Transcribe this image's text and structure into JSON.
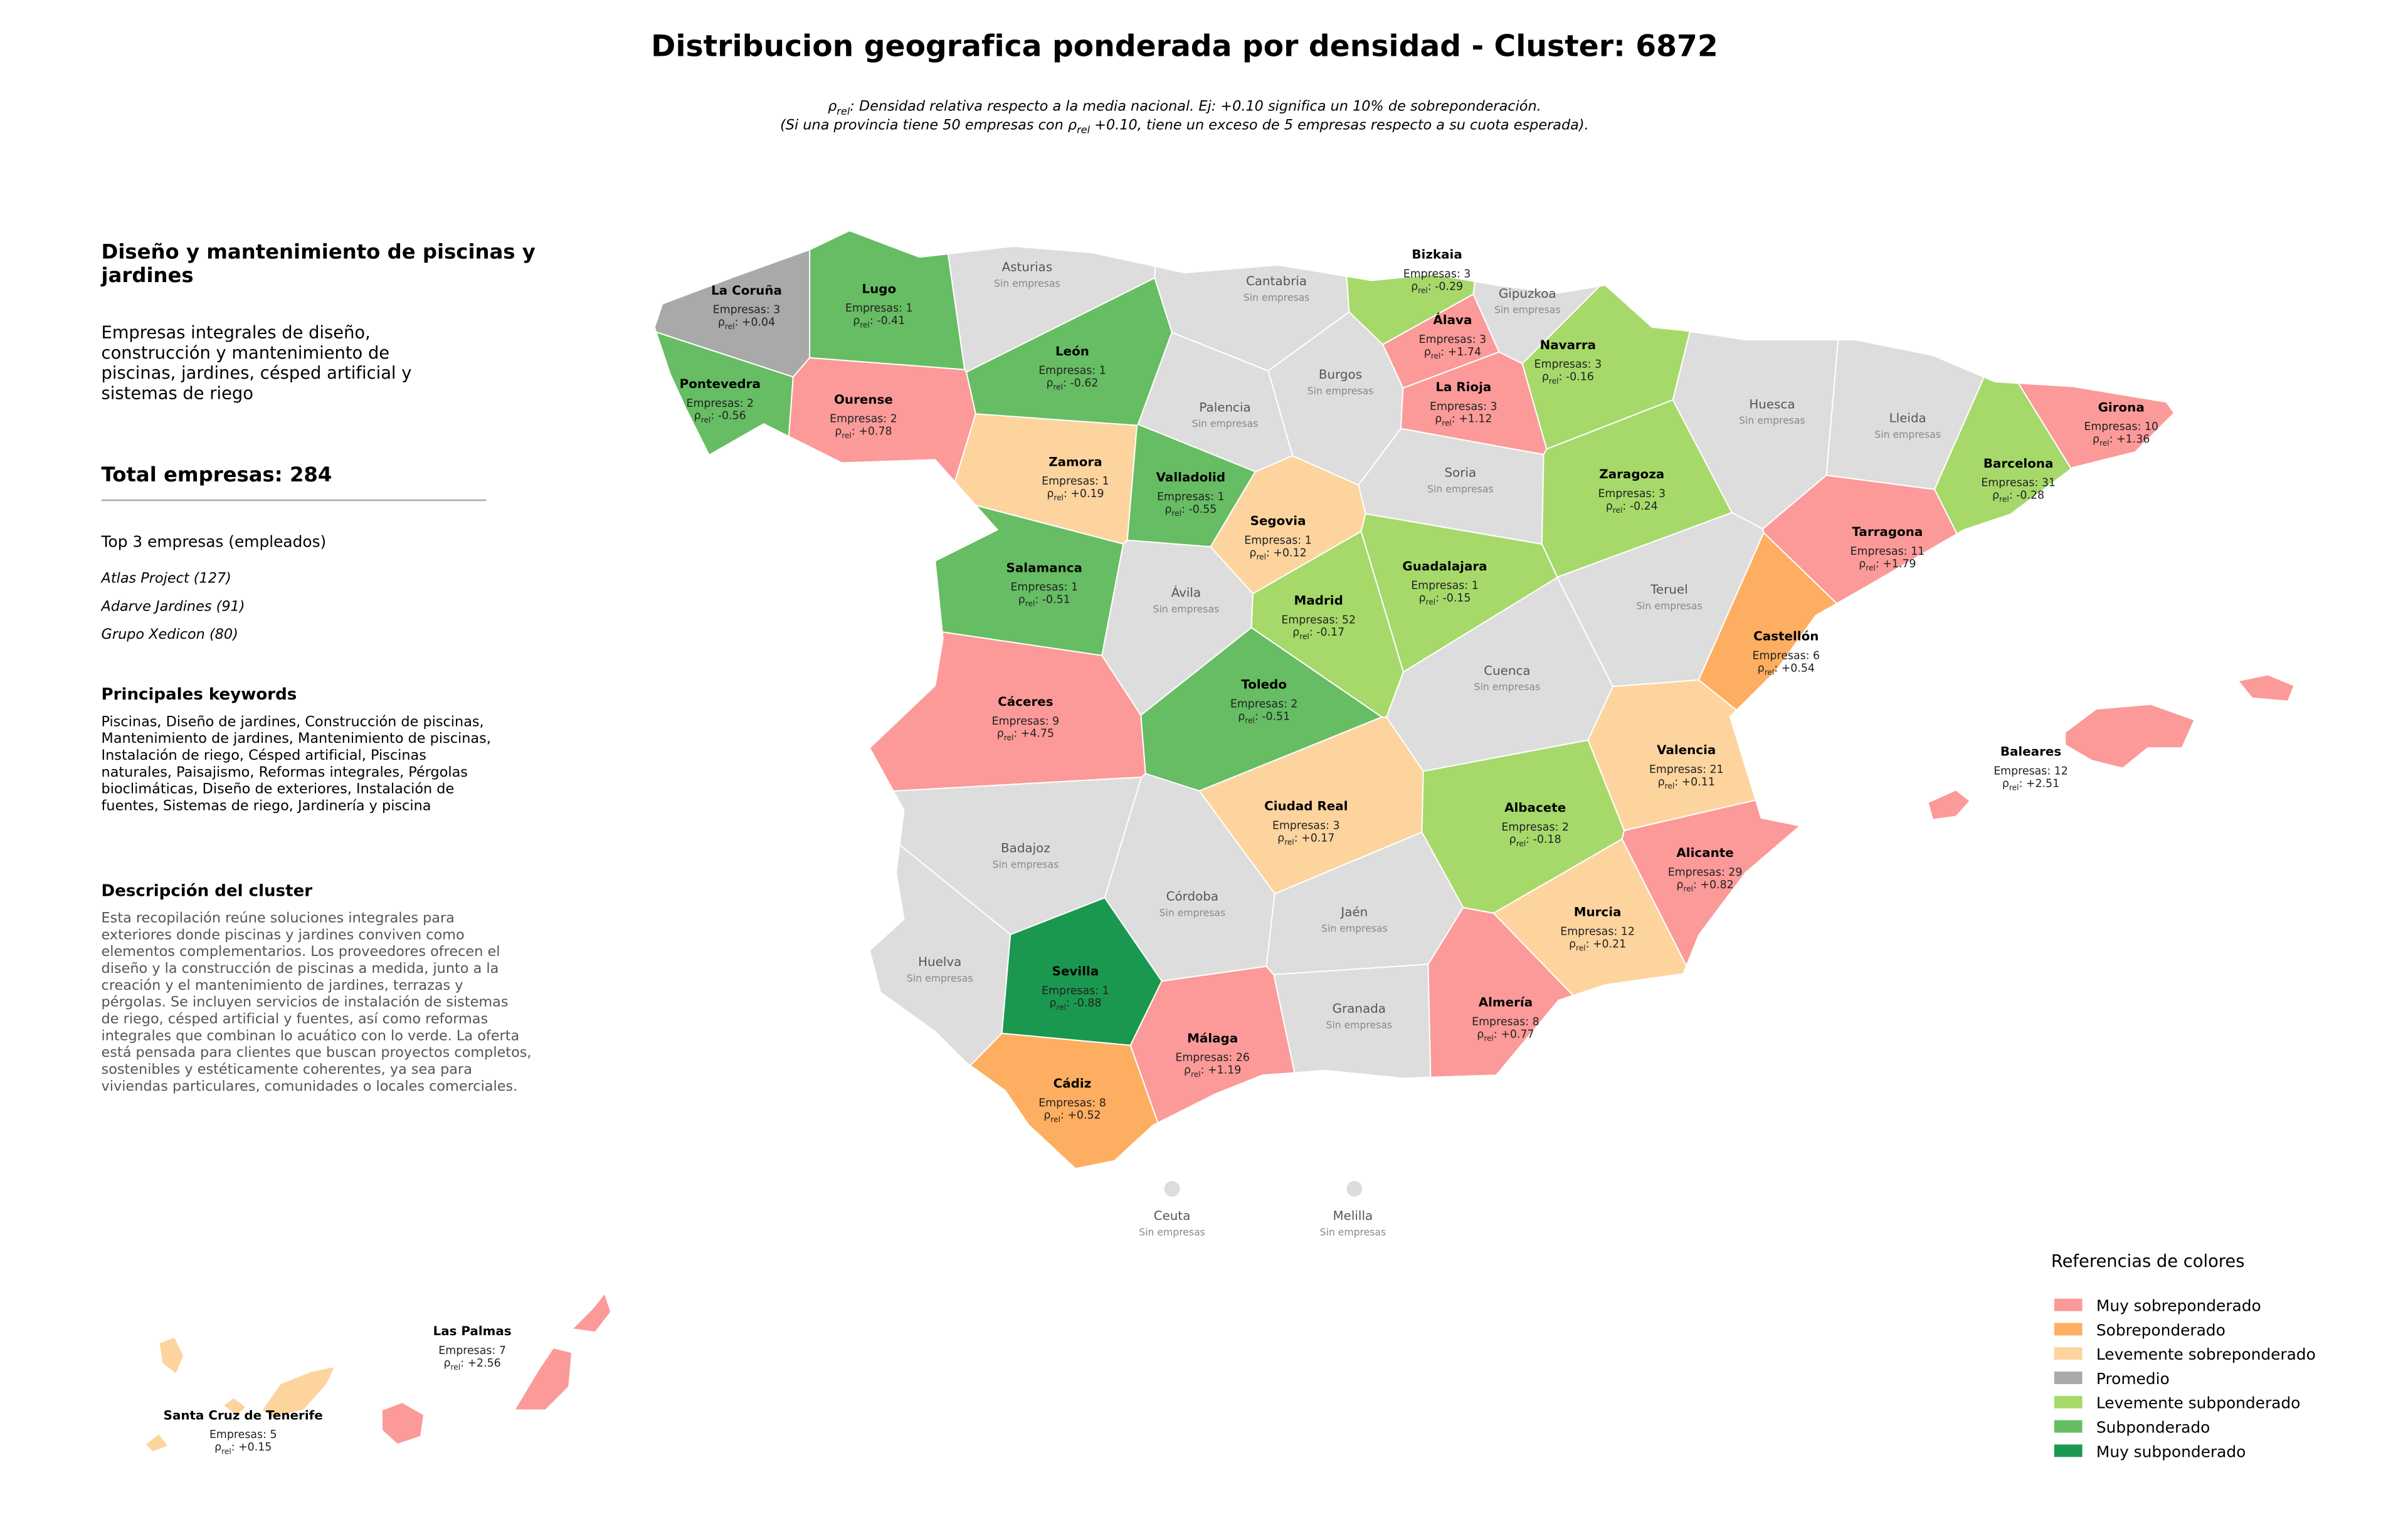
{
  "header": {
    "title": "Distribucion geografica ponderada por densidad - Cluster: 6872",
    "subtitle": [
      {
        "pre": "",
        "post": ": Densidad relativa respecto a la media nacional. Ej: +0.10 significa un 10% de sobreponderación."
      },
      {
        "pre": "(Si una provincia tiene 50 empresas con ",
        "post": " +0.10, tiene un exceso de 5 empresas respecto a su cuota esperada)."
      }
    ]
  },
  "rho_symbol": {
    "sym": "ρ",
    "sub": "rel",
    "sep": ": "
  },
  "count_prefix": "Empresas: ",
  "panel": {
    "heading": [
      "Diseño y mantenimiento de piscinas y",
      "jardines"
    ],
    "summary": [
      "Empresas integrales de diseño,",
      "construcción y mantenimiento de",
      "piscinas, jardines, césped artificial y",
      "sistemas de riego"
    ],
    "total_label": "Total empresas: ",
    "total": 284,
    "top_title": "Top 3 empresas (empleados)",
    "top": [
      "Atlas Project (127)",
      "Adarve Jardines (91)",
      "Grupo Xedicon (80)"
    ],
    "keywords_title": "Principales keywords",
    "keywords": [
      "Piscinas, Diseño de jardines, Construcción de piscinas,",
      "Mantenimiento de jardines, Mantenimiento de piscinas,",
      "Instalación de riego, Césped artificial, Piscinas",
      "naturales, Paisajismo, Reformas integrales, Pérgolas",
      "bioclimáticas, Diseño de exteriores, Instalación de",
      "fuentes, Sistemas de riego, Jardinería y piscina"
    ],
    "description_title": "Descripción del cluster",
    "description": [
      "Esta recopilación reúne soluciones integrales para",
      "exteriores donde piscinas y jardines conviven como",
      "elementos complementarios. Los proveedores ofrecen el",
      "diseño y la construcción de piscinas a medida, junto a la",
      "creación y el mantenimiento de jardines, terrazas y",
      "pérgolas. Se incluyen servicios de instalación de sistemas",
      "de riego, césped artificial y fuentes, así como reformas",
      "integrales que combinan lo acuático con lo verde. La oferta",
      "está pensada para clientes que buscan proyectos completos,",
      "sostenibles y estéticamente coherentes, ya sea para",
      "viviendas particulares, comunidades o locales comerciales."
    ]
  },
  "provinces": [
    {
      "name": "La Coruña",
      "count": 3,
      "rho": {
        "value": 0.04,
        "label": "+0.04"
      },
      "color": "#a9a9a9"
    },
    {
      "name": "Lugo",
      "count": 1,
      "rho": -0.41,
      "color": "#66bd63"
    },
    {
      "name": "Asturias",
      "status": "Sin empresas",
      "color": "#dddddd"
    },
    {
      "name": "Cantabria",
      "status": "Sin empresas",
      "color": "#dddddd"
    },
    {
      "name": "Bizkaia",
      "count": 3,
      "rho": -0.29,
      "color": "#a6d96a"
    },
    {
      "name": "Gipuzkoa",
      "status": "Sin empresas",
      "color": "#dddddd"
    },
    {
      "name": "Álava",
      "count": 3,
      "rho": {
        "value": 1.74,
        "label": "+1.74"
      },
      "color": "#fb9a99"
    },
    {
      "name": "Navarra",
      "count": 3,
      "rho": -0.16,
      "color": "#a6d96a"
    },
    {
      "name": "León",
      "count": 1,
      "rho": -0.62,
      "color": "#66bd63"
    },
    {
      "name": "Pontevedra",
      "count": 2,
      "rho": -0.56,
      "color": "#66bd63"
    },
    {
      "name": "Ourense",
      "count": 2,
      "rho": {
        "value": 0.78,
        "label": "+0.78"
      },
      "color": "#fb9a99"
    },
    {
      "name": "Burgos",
      "status": "Sin empresas",
      "color": "#dddddd"
    },
    {
      "name": "Palencia",
      "status": "Sin empresas",
      "color": "#dddddd"
    },
    {
      "name": "La Rioja",
      "count": 3,
      "rho": {
        "value": 1.12,
        "label": "+1.12"
      },
      "color": "#fb9a99"
    },
    {
      "name": "Huesca",
      "status": "Sin empresas",
      "color": "#dddddd"
    },
    {
      "name": "Lleida",
      "status": "Sin empresas",
      "color": "#dddddd"
    },
    {
      "name": "Girona",
      "count": 10,
      "rho": {
        "value": 1.36,
        "label": "+1.36"
      },
      "color": "#fb9a99"
    },
    {
      "name": "Zamora",
      "count": 1,
      "rho": {
        "value": 0.19,
        "label": "+0.19"
      },
      "color": "#fdd49e"
    },
    {
      "name": "Valladolid",
      "count": 1,
      "rho": -0.55,
      "color": "#66bd63"
    },
    {
      "name": "Soria",
      "status": "Sin empresas",
      "color": "#dddddd"
    },
    {
      "name": "Zaragoza",
      "count": 3,
      "rho": -0.24,
      "color": "#a6d96a"
    },
    {
      "name": "Barcelona",
      "count": 31,
      "rho": -0.28,
      "color": "#a6d96a"
    },
    {
      "name": "Segovia",
      "count": 1,
      "rho": {
        "value": 0.12,
        "label": "+0.12"
      },
      "color": "#fdd49e"
    },
    {
      "name": "Salamanca",
      "count": 1,
      "rho": -0.51,
      "color": "#66bd63"
    },
    {
      "name": "Guadalajara",
      "count": 1,
      "rho": -0.15,
      "color": "#a6d96a"
    },
    {
      "name": "Tarragona",
      "count": 11,
      "rho": {
        "value": 1.79,
        "label": "+1.79"
      },
      "color": "#fb9a99"
    },
    {
      "name": "Ávila",
      "status": "Sin empresas",
      "color": "#dddddd"
    },
    {
      "name": "Madrid",
      "count": 52,
      "rho": -0.17,
      "color": "#a6d96a"
    },
    {
      "name": "Teruel",
      "status": "Sin empresas",
      "color": "#dddddd"
    },
    {
      "name": "Castellón",
      "count": 6,
      "rho": {
        "value": 0.54,
        "label": "+0.54"
      },
      "color": "#fdae61"
    },
    {
      "name": "Cáceres",
      "count": 9,
      "rho": {
        "value": 4.75,
        "label": "+4.75"
      },
      "color": "#fb9a99"
    },
    {
      "name": "Toledo",
      "count": 2,
      "rho": -0.51,
      "color": "#66bd63"
    },
    {
      "name": "Cuenca",
      "status": "Sin empresas",
      "color": "#dddddd"
    },
    {
      "name": "Valencia",
      "count": 21,
      "rho": {
        "value": 0.11,
        "label": "+0.11"
      },
      "color": "#fdd49e"
    },
    {
      "name": "Baleares",
      "count": 12,
      "rho": {
        "value": 2.51,
        "label": "+2.51"
      },
      "color": "#fb9a99"
    },
    {
      "name": "Ciudad Real",
      "count": 3,
      "rho": {
        "value": 0.17,
        "label": "+0.17"
      },
      "color": "#fdd49e"
    },
    {
      "name": "Albacete",
      "count": 2,
      "rho": -0.18,
      "color": "#a6d96a"
    },
    {
      "name": "Badajoz",
      "status": "Sin empresas",
      "color": "#dddddd"
    },
    {
      "name": "Alicante",
      "count": 29,
      "rho": {
        "value": 0.82,
        "label": "+0.82"
      },
      "color": "#fb9a99"
    },
    {
      "name": "Córdoba",
      "status": "Sin empresas",
      "color": "#dddddd"
    },
    {
      "name": "Jaén",
      "status": "Sin empresas",
      "color": "#dddddd"
    },
    {
      "name": "Murcia",
      "count": 12,
      "rho": {
        "value": 0.21,
        "label": "+0.21"
      },
      "color": "#fdd49e"
    },
    {
      "name": "Huelva",
      "status": "Sin empresas",
      "color": "#dddddd"
    },
    {
      "name": "Sevilla",
      "count": 1,
      "rho": -0.88,
      "color": "#1a9850"
    },
    {
      "name": "Granada",
      "status": "Sin empresas",
      "color": "#dddddd"
    },
    {
      "name": "Almería",
      "count": 8,
      "rho": {
        "value": 0.77,
        "label": "+0.77"
      },
      "color": "#fb9a99"
    },
    {
      "name": "Málaga",
      "count": 26,
      "rho": {
        "value": 1.19,
        "label": "+1.19"
      },
      "color": "#fb9a99"
    },
    {
      "name": "Cádiz",
      "count": 8,
      "rho": {
        "value": 0.52,
        "label": "+0.52"
      },
      "color": "#fdae61"
    },
    {
      "name": "Ceuta",
      "status": "Sin empresas",
      "color": "#dddddd"
    },
    {
      "name": "Melilla",
      "status": "Sin empresas",
      "color": "#dddddd"
    },
    {
      "name": "Las Palmas",
      "count": 7,
      "rho": {
        "value": 2.56,
        "label": "+2.56"
      },
      "color": "#fb9a99"
    },
    {
      "name": "Santa Cruz de Tenerife",
      "count": 5,
      "rho": {
        "value": 0.15,
        "label": "+0.15"
      },
      "color": "#fdd49e"
    }
  ],
  "legend": {
    "title": "Referencias de colores",
    "items": [
      {
        "label": "Muy sobreponderado",
        "color": "#fb9a99"
      },
      {
        "label": "Sobreponderado",
        "color": "#fdae61"
      },
      {
        "label": "Levemente sobreponderado",
        "color": "#fdd49e"
      },
      {
        "label": "Promedio",
        "color": "#a9a9a9"
      },
      {
        "label": "Levemente subponderado",
        "color": "#a6d96a"
      },
      {
        "label": "Subponderado",
        "color": "#66bd63"
      },
      {
        "label": "Muy subponderado",
        "color": "#1a9850"
      }
    ]
  }
}
